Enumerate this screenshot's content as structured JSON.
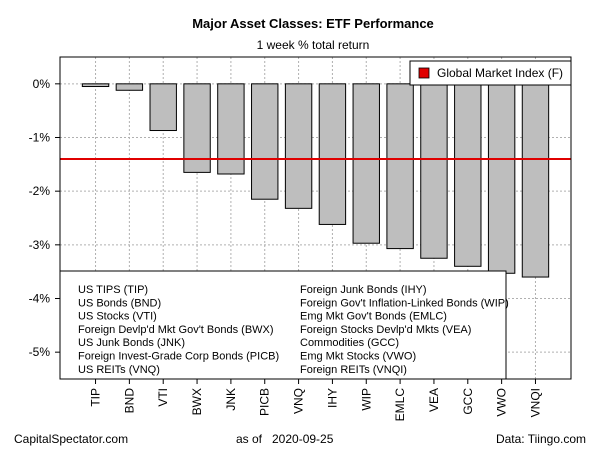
{
  "chart_data": {
    "type": "bar",
    "title": "Major Asset Classes: ETF Performance",
    "subtitle": "1 week % total return",
    "categories": [
      "TIP",
      "BND",
      "VTI",
      "BWX",
      "JNK",
      "PICB",
      "VNQ",
      "IHY",
      "WIP",
      "EMLC",
      "VEA",
      "GCC",
      "VWO",
      "VNQI"
    ],
    "values": [
      -0.05,
      -0.12,
      -0.87,
      -1.65,
      -1.68,
      -2.15,
      -2.32,
      -2.62,
      -2.97,
      -3.07,
      -3.25,
      -3.4,
      -3.53,
      -3.6
    ],
    "ylim": [
      -5.5,
      0.5
    ],
    "yticks": [
      0,
      -1,
      -2,
      -3,
      -4,
      -5
    ],
    "ytick_labels": [
      "0%",
      "-1%",
      "-2%",
      "-3%",
      "-4%",
      "-5%"
    ],
    "reference_line": {
      "label": "Global Market Index (F)",
      "value": -1.4,
      "color": "#e00000"
    },
    "bar_color": "#bebebe",
    "grid": true,
    "legend_position": "top-right",
    "key_left": [
      "US TIPS (TIP)",
      "US Bonds (BND)",
      "US Stocks (VTI)",
      "Foreign Devlp'd Mkt Gov't Bonds (BWX)",
      "US Junk Bonds (JNK)",
      "Foreign Invest-Grade Corp Bonds (PICB)",
      "US REITs (VNQ)"
    ],
    "key_right": [
      "Foreign Junk Bonds (IHY)",
      "Foreign Gov't Inflation-Linked Bonds (WIP)",
      "Emg Mkt Gov't Bonds (EMLC)",
      "Foreign Stocks Devlp'd Mkts (VEA)",
      "Commodities (GCC)",
      "Emg Mkt Stocks (VWO)",
      "Foreign REITs (VNQI)"
    ]
  },
  "footer": {
    "source_site": "CapitalSpectator.com",
    "as_of_label": "as of",
    "as_of_date": "2020-09-25",
    "data_source": "Data: Tiingo.com"
  }
}
